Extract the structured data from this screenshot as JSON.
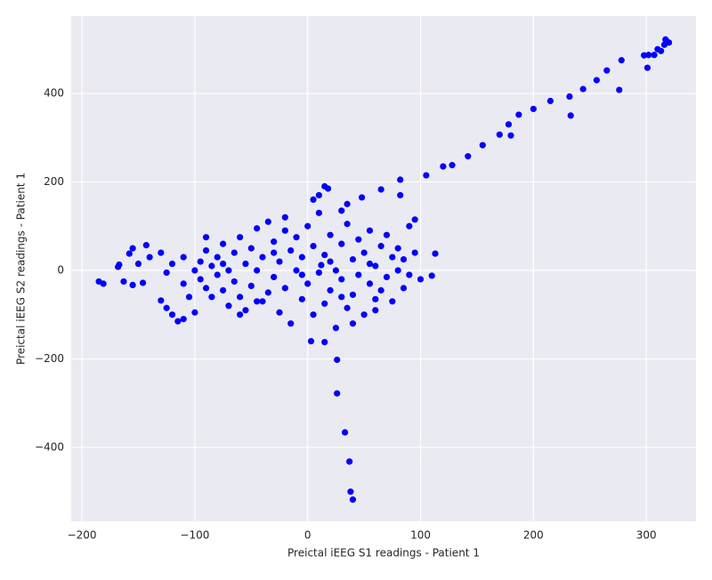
{
  "chart_data": {
    "type": "scatter",
    "xlabel": "Preictal iEEG S1 readings - Patient 1",
    "ylabel": "Preictal iEEG S2 readings - Patient 1",
    "color": "#0000ff",
    "grid": true,
    "xlim": [
      -209.5,
      344
    ],
    "ylim": [
      -567,
      575
    ],
    "xticks": [
      {
        "value": -200,
        "label": "−200"
      },
      {
        "value": -100,
        "label": "−100"
      },
      0,
      100,
      200,
      300
    ],
    "yticks": [
      {
        "value": -400,
        "label": "−400"
      },
      {
        "value": -200,
        "label": "−200"
      },
      0,
      200,
      400
    ],
    "x": [
      105,
      120,
      128,
      142,
      155,
      170,
      178,
      180,
      187,
      200,
      215,
      232,
      233,
      244,
      256,
      265,
      276,
      278,
      298,
      301,
      302,
      307,
      310,
      313,
      316,
      317,
      318,
      320,
      26,
      26,
      33,
      37,
      38,
      40,
      3,
      15,
      -185,
      -181,
      -168,
      -167,
      -163,
      -158,
      -155,
      -155,
      -150,
      -146,
      -143,
      -140,
      -130,
      -125,
      -120,
      -115,
      -110,
      5,
      10,
      15,
      18,
      30,
      35,
      48,
      65,
      82,
      82,
      90,
      95,
      113,
      110,
      -100,
      -95,
      -95,
      -90,
      -90,
      -85,
      -85,
      -80,
      -80,
      -75,
      -75,
      -70,
      -70,
      -65,
      -65,
      -60,
      -60,
      -55,
      -55,
      -50,
      -50,
      -45,
      -45,
      -40,
      -40,
      -35,
      -35,
      -30,
      -30,
      -25,
      -25,
      -20,
      -20,
      -15,
      -15,
      -10,
      -10,
      -5,
      -5,
      0,
      0,
      5,
      5,
      10,
      10,
      15,
      15,
      20,
      20,
      25,
      25,
      30,
      30,
      35,
      35,
      40,
      40,
      45,
      45,
      50,
      50,
      55,
      55,
      60,
      60,
      65,
      65,
      70,
      70,
      75,
      75,
      80,
      80,
      85,
      85,
      90,
      95,
      100,
      -110,
      -110,
      -120,
      -125,
      -130,
      -105,
      -100,
      -90,
      -60,
      -20,
      40,
      60,
      -5,
      12,
      -30,
      20,
      -45,
      30,
      -75,
      55
    ],
    "values": [
      215,
      235,
      238,
      258,
      283,
      307,
      330,
      305,
      352,
      365,
      383,
      393,
      350,
      410,
      430,
      452,
      408,
      475,
      486,
      458,
      487,
      487,
      500,
      496,
      510,
      522,
      518,
      515,
      -202,
      -278,
      -366,
      -432,
      -500,
      -518,
      -160,
      -162,
      -25,
      -30,
      8,
      13,
      -25,
      38,
      50,
      -33,
      15,
      -28,
      57,
      30,
      -68,
      -85,
      -100,
      -115,
      -110,
      160,
      170,
      190,
      185,
      135,
      150,
      165,
      183,
      205,
      170,
      100,
      115,
      38,
      -12,
      0,
      20,
      -20,
      45,
      -40,
      10,
      -60,
      30,
      -10,
      60,
      -45,
      0,
      -80,
      40,
      -25,
      75,
      -60,
      15,
      -90,
      50,
      -35,
      95,
      0,
      -70,
      30,
      110,
      -50,
      65,
      -15,
      -95,
      20,
      90,
      -40,
      45,
      -120,
      0,
      75,
      -65,
      30,
      100,
      -30,
      55,
      -100,
      -5,
      130,
      -75,
      35,
      80,
      -45,
      0,
      -130,
      60,
      -20,
      105,
      -85,
      25,
      -55,
      70,
      -10,
      -100,
      40,
      90,
      -30,
      10,
      -65,
      55,
      -45,
      -15,
      80,
      30,
      -70,
      0,
      50,
      -40,
      25,
      -10,
      40,
      -20,
      30,
      -30,
      15,
      -5,
      40,
      -60,
      -95,
      75,
      -100,
      120,
      -120,
      -90,
      -10,
      12,
      40,
      20,
      -70,
      -60,
      15,
      15
    ]
  }
}
